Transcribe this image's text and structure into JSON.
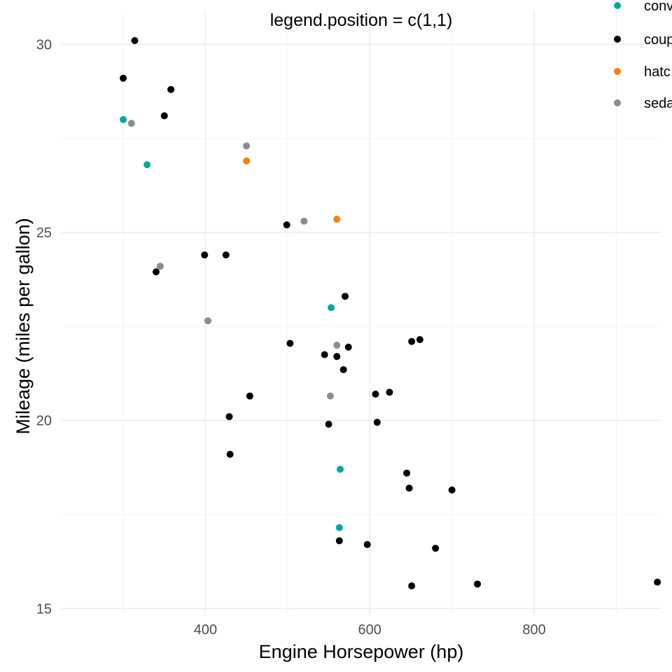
{
  "chart_data": {
    "type": "scatter",
    "title": "legend.position = c(1,1)",
    "xlabel": "Engine Horsepower (hp)",
    "ylabel": "Mileage (miles per gallon)",
    "xlim": [
      225,
      955
    ],
    "ylim": [
      14.8,
      30.9
    ],
    "x_ticks": [
      400,
      600,
      800
    ],
    "x_minor_ticks": [
      300,
      500,
      700,
      900
    ],
    "y_ticks": [
      15,
      20,
      25,
      30
    ],
    "y_minor_ticks": [
      17.5,
      22.5,
      27.5
    ],
    "grid": true,
    "legend": {
      "placement": "top-right, partially clipped",
      "entries": [
        {
          "label": "conv",
          "color": "#00A99D"
        },
        {
          "label": "coup",
          "color": "#000000"
        },
        {
          "label": "hatc",
          "color": "#FF7F00"
        },
        {
          "label": "seda",
          "color": "#8C8C8C"
        }
      ]
    },
    "series": [
      {
        "color": "#00A99D",
        "points": [
          [
            300,
            28.0
          ],
          [
            329,
            26.8
          ],
          [
            553,
            23.0
          ],
          [
            564,
            18.7
          ],
          [
            563,
            17.15
          ]
        ]
      },
      {
        "color": "#000000",
        "points": [
          [
            314,
            30.1
          ],
          [
            300,
            29.1
          ],
          [
            358,
            28.8
          ],
          [
            350,
            28.1
          ],
          [
            399,
            24.4
          ],
          [
            425,
            24.4
          ],
          [
            340,
            23.95
          ],
          [
            499,
            25.2
          ],
          [
            570,
            23.3
          ],
          [
            503,
            22.05
          ],
          [
            545,
            21.75
          ],
          [
            560,
            21.7
          ],
          [
            574,
            21.95
          ],
          [
            651,
            22.1
          ],
          [
            661,
            22.15
          ],
          [
            568,
            21.35
          ],
          [
            454,
            20.65
          ],
          [
            607,
            20.7
          ],
          [
            624,
            20.75
          ],
          [
            429,
            20.1
          ],
          [
            550,
            19.9
          ],
          [
            609,
            19.95
          ],
          [
            430,
            19.1
          ],
          [
            645,
            18.6
          ],
          [
            648,
            18.2
          ],
          [
            700,
            18.15
          ],
          [
            563,
            16.8
          ],
          [
            597,
            16.7
          ],
          [
            680,
            16.6
          ],
          [
            651,
            15.6
          ],
          [
            731,
            15.65
          ],
          [
            950,
            15.7
          ]
        ]
      },
      {
        "color": "#FF7F00",
        "points": [
          [
            450,
            26.9
          ],
          [
            560,
            25.35
          ]
        ]
      },
      {
        "color": "#8C8C8C",
        "points": [
          [
            310,
            27.9
          ],
          [
            450,
            27.3
          ],
          [
            520,
            25.3
          ],
          [
            345,
            24.1
          ],
          [
            403,
            22.65
          ],
          [
            560,
            22.0
          ],
          [
            552,
            20.65
          ]
        ]
      }
    ]
  }
}
